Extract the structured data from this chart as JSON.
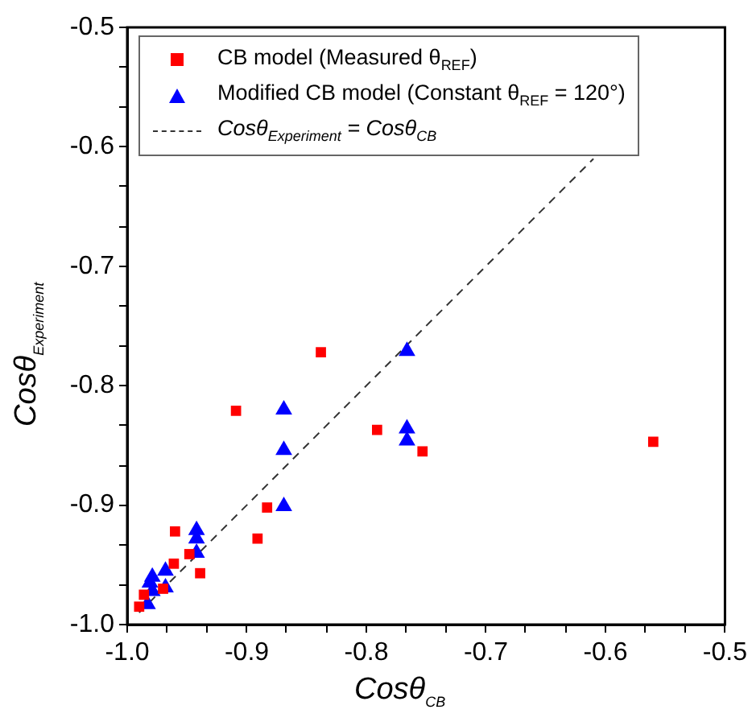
{
  "chart_data": {
    "type": "scatter",
    "xlabel": "Cosθ$_{CB}$",
    "ylabel": "Cosθ$_{Experiment}$",
    "xlim": [
      -1.0,
      -0.5
    ],
    "ylim": [
      -1.0,
      -0.5
    ],
    "xticks": [
      {
        "value": -1.0,
        "label": "-1.0"
      },
      {
        "value": -0.967,
        "label": null
      },
      {
        "value": -0.933,
        "label": null
      },
      {
        "value": -0.9,
        "label": "-0.9"
      },
      {
        "value": -0.867,
        "label": null
      },
      {
        "value": -0.833,
        "label": null
      },
      {
        "value": -0.8,
        "label": "-0.8"
      },
      {
        "value": -0.767,
        "label": null
      },
      {
        "value": -0.733,
        "label": null
      },
      {
        "value": -0.7,
        "label": "-0.7"
      },
      {
        "value": -0.667,
        "label": null
      },
      {
        "value": -0.633,
        "label": null
      },
      {
        "value": -0.6,
        "label": "-0.6"
      },
      {
        "value": -0.567,
        "label": null
      },
      {
        "value": -0.533,
        "label": null
      },
      -0.5
    ],
    "yticks": [
      {
        "value": -1.0,
        "label": "-1.0"
      },
      {
        "value": -0.967,
        "label": null
      },
      {
        "value": -0.933,
        "label": null
      },
      {
        "value": -0.9,
        "label": "-0.9"
      },
      {
        "value": -0.867,
        "label": null
      },
      {
        "value": -0.833,
        "label": null
      },
      {
        "value": -0.8,
        "label": "-0.8"
      },
      {
        "value": -0.767,
        "label": null
      },
      {
        "value": -0.733,
        "label": null
      },
      {
        "value": -0.7,
        "label": "-0.7"
      },
      {
        "value": -0.667,
        "label": null
      },
      {
        "value": -0.633,
        "label": null
      },
      {
        "value": -0.6,
        "label": "-0.6"
      },
      {
        "value": -0.567,
        "label": null
      },
      {
        "value": -0.533,
        "label": null
      },
      -0.5
    ],
    "grid": false,
    "legend": "top",
    "series": [
      {
        "name": "CB model (Measured θ$_{REF}$)",
        "marker": "square",
        "color": "#ff0000",
        "x": [
          -0.909,
          -0.838,
          -0.791,
          -0.753,
          -0.56,
          -0.883,
          -0.891,
          -0.96,
          -0.948,
          -0.939,
          -0.961,
          -0.97,
          -0.99,
          -0.986
        ],
        "values": [
          -0.821,
          -0.772,
          -0.837,
          -0.855,
          -0.847,
          -0.902,
          -0.928,
          -0.922,
          -0.941,
          -0.957,
          -0.949,
          -0.97,
          -0.985,
          -0.975
        ]
      },
      {
        "name": "Modified CB model (Constant θ$_{REF}$ = 120°)",
        "marker": "triangle",
        "color": "#0000ff",
        "x": [
          -0.766,
          -0.766,
          -0.766,
          -0.869,
          -0.869,
          -0.869,
          -0.942,
          -0.942,
          -0.942,
          -0.968,
          -0.968,
          -0.979,
          -0.979,
          -0.981,
          -0.983
        ],
        "values": [
          -0.771,
          -0.836,
          -0.846,
          -0.82,
          -0.854,
          -0.901,
          -0.921,
          -0.928,
          -0.94,
          -0.955,
          -0.969,
          -0.96,
          -0.972,
          -0.965,
          -0.983
        ]
      },
      {
        "name": "Cosθ$_{Experiment}$ = Cosθ$_{CB}$",
        "type": "line",
        "marker": "none",
        "line_style": "dashed",
        "color": "#333333",
        "x": [
          -0.99,
          -0.61
        ],
        "values": [
          -0.99,
          -0.61
        ]
      }
    ]
  }
}
